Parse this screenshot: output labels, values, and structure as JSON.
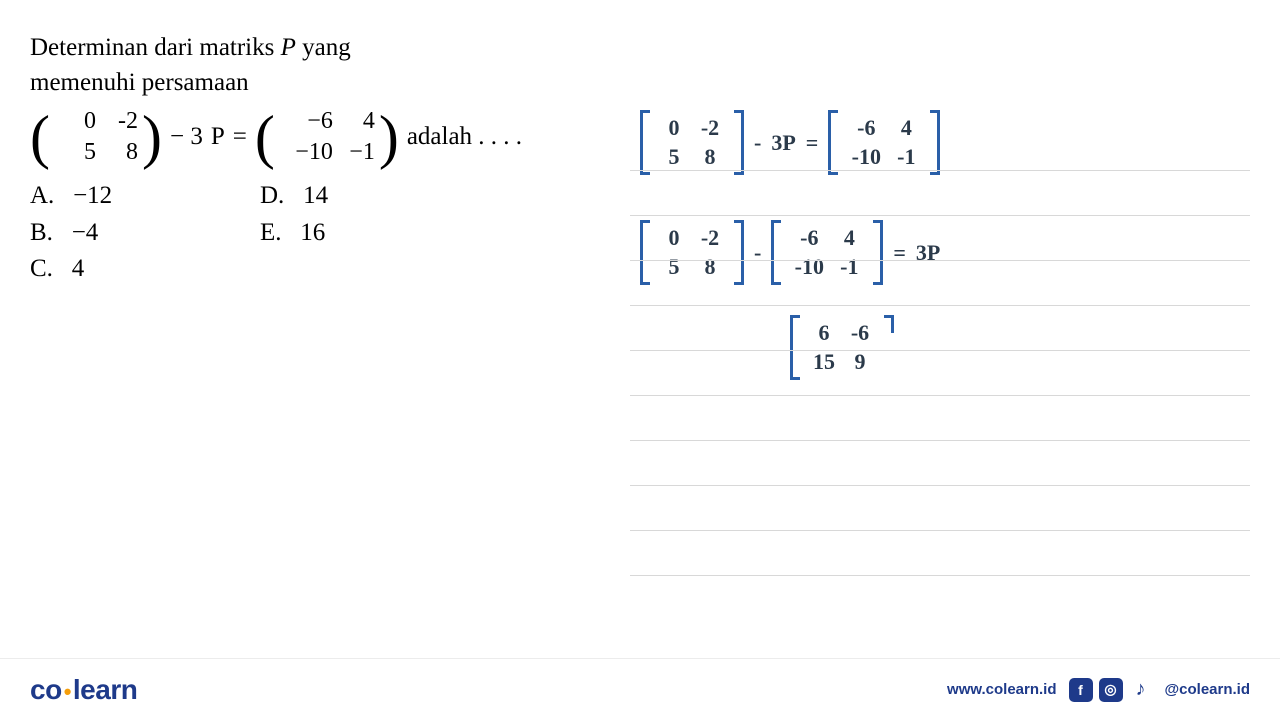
{
  "question": {
    "line1_part1": "Determinan dari matriks ",
    "line1_var": "P",
    "line1_part2": " yang",
    "line2": "memenuhi persamaan",
    "m1": [
      [
        "0",
        "-2"
      ],
      [
        "5",
        "8"
      ]
    ],
    "op1": " − 3",
    "var": "P",
    "op2": " = ",
    "m2": [
      [
        "−6",
        "4"
      ],
      [
        "−10",
        "−1"
      ]
    ],
    "trail": " adalah . . . ."
  },
  "options": {
    "A": "−12",
    "B": "−4",
    "C": "4",
    "D": "14",
    "E": "16"
  },
  "handwriting": {
    "ruled_lines_y": [
      140,
      185,
      230,
      275,
      320,
      365,
      410,
      455,
      500,
      545
    ],
    "line_color": "#d8d8d8",
    "ink_color": "#2b3a4a",
    "bracket_color": "#2a5fa8",
    "eq1": {
      "m1": [
        [
          "0",
          "-2"
        ],
        [
          "5",
          "8"
        ]
      ],
      "op1": "-",
      "t1": "3P",
      "op2": "=",
      "m2": [
        [
          "-6",
          "4"
        ],
        [
          "-10",
          "-1"
        ]
      ]
    },
    "eq2": {
      "m1": [
        [
          "0",
          "-2"
        ],
        [
          "5",
          "8"
        ]
      ],
      "op1": "-",
      "m2": [
        [
          "-6",
          "4"
        ],
        [
          "-10",
          "-1"
        ]
      ],
      "op2": "=",
      "t1": "3P"
    },
    "eq3": {
      "m1": [
        [
          "6",
          "-6"
        ],
        [
          "15",
          "9"
        ]
      ]
    }
  },
  "footer": {
    "logo_co": "co",
    "logo_learn": "learn",
    "url": "www.colearn.id",
    "handle": "@colearn.id",
    "icons": {
      "fb": "f",
      "ig": "◎",
      "tt": "♪"
    }
  },
  "colors": {
    "text": "#000000",
    "logo_blue": "#1e3a8a",
    "logo_accent": "#f59e0b",
    "background": "#ffffff"
  }
}
